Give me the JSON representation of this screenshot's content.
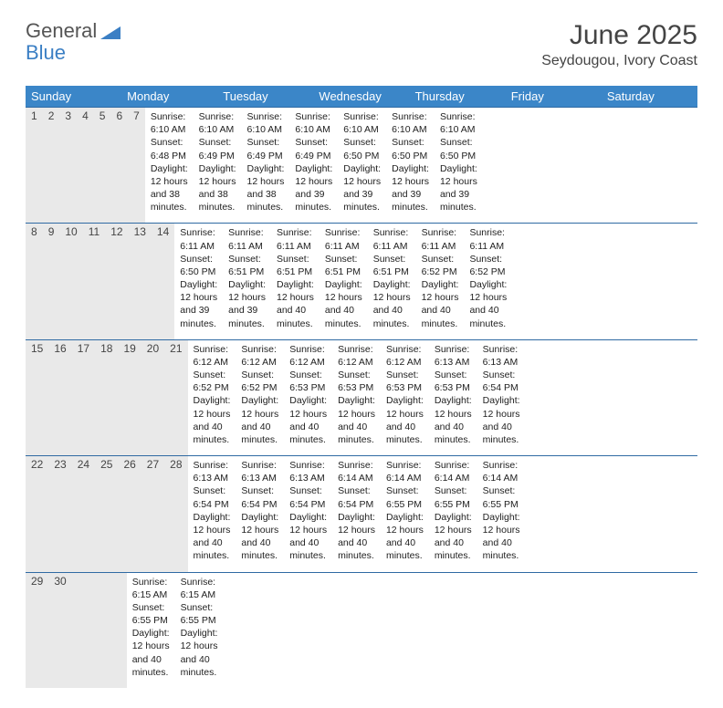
{
  "logo": {
    "line1": "General",
    "line2": "Blue"
  },
  "title": {
    "month": "June 2025",
    "location": "Seydougou, Ivory Coast"
  },
  "colors": {
    "header_bg": "#3b86c8",
    "header_text": "#ffffff",
    "daynum_bg": "#e9e9e9",
    "week_border": "#2f6aa3",
    "logo_gray": "#555555",
    "logo_blue": "#3b7fc4",
    "text": "#222222"
  },
  "day_headers": [
    "Sunday",
    "Monday",
    "Tuesday",
    "Wednesday",
    "Thursday",
    "Friday",
    "Saturday"
  ],
  "weeks": [
    {
      "nums": [
        "1",
        "2",
        "3",
        "4",
        "5",
        "6",
        "7"
      ],
      "cells": [
        {
          "sunrise": "Sunrise: 6:10 AM",
          "sunset": "Sunset: 6:48 PM",
          "day1": "Daylight: 12 hours",
          "day2": "and 38 minutes."
        },
        {
          "sunrise": "Sunrise: 6:10 AM",
          "sunset": "Sunset: 6:49 PM",
          "day1": "Daylight: 12 hours",
          "day2": "and 38 minutes."
        },
        {
          "sunrise": "Sunrise: 6:10 AM",
          "sunset": "Sunset: 6:49 PM",
          "day1": "Daylight: 12 hours",
          "day2": "and 38 minutes."
        },
        {
          "sunrise": "Sunrise: 6:10 AM",
          "sunset": "Sunset: 6:49 PM",
          "day1": "Daylight: 12 hours",
          "day2": "and 39 minutes."
        },
        {
          "sunrise": "Sunrise: 6:10 AM",
          "sunset": "Sunset: 6:50 PM",
          "day1": "Daylight: 12 hours",
          "day2": "and 39 minutes."
        },
        {
          "sunrise": "Sunrise: 6:10 AM",
          "sunset": "Sunset: 6:50 PM",
          "day1": "Daylight: 12 hours",
          "day2": "and 39 minutes."
        },
        {
          "sunrise": "Sunrise: 6:10 AM",
          "sunset": "Sunset: 6:50 PM",
          "day1": "Daylight: 12 hours",
          "day2": "and 39 minutes."
        }
      ]
    },
    {
      "nums": [
        "8",
        "9",
        "10",
        "11",
        "12",
        "13",
        "14"
      ],
      "cells": [
        {
          "sunrise": "Sunrise: 6:11 AM",
          "sunset": "Sunset: 6:50 PM",
          "day1": "Daylight: 12 hours",
          "day2": "and 39 minutes."
        },
        {
          "sunrise": "Sunrise: 6:11 AM",
          "sunset": "Sunset: 6:51 PM",
          "day1": "Daylight: 12 hours",
          "day2": "and 39 minutes."
        },
        {
          "sunrise": "Sunrise: 6:11 AM",
          "sunset": "Sunset: 6:51 PM",
          "day1": "Daylight: 12 hours",
          "day2": "and 40 minutes."
        },
        {
          "sunrise": "Sunrise: 6:11 AM",
          "sunset": "Sunset: 6:51 PM",
          "day1": "Daylight: 12 hours",
          "day2": "and 40 minutes."
        },
        {
          "sunrise": "Sunrise: 6:11 AM",
          "sunset": "Sunset: 6:51 PM",
          "day1": "Daylight: 12 hours",
          "day2": "and 40 minutes."
        },
        {
          "sunrise": "Sunrise: 6:11 AM",
          "sunset": "Sunset: 6:52 PM",
          "day1": "Daylight: 12 hours",
          "day2": "and 40 minutes."
        },
        {
          "sunrise": "Sunrise: 6:11 AM",
          "sunset": "Sunset: 6:52 PM",
          "day1": "Daylight: 12 hours",
          "day2": "and 40 minutes."
        }
      ]
    },
    {
      "nums": [
        "15",
        "16",
        "17",
        "18",
        "19",
        "20",
        "21"
      ],
      "cells": [
        {
          "sunrise": "Sunrise: 6:12 AM",
          "sunset": "Sunset: 6:52 PM",
          "day1": "Daylight: 12 hours",
          "day2": "and 40 minutes."
        },
        {
          "sunrise": "Sunrise: 6:12 AM",
          "sunset": "Sunset: 6:52 PM",
          "day1": "Daylight: 12 hours",
          "day2": "and 40 minutes."
        },
        {
          "sunrise": "Sunrise: 6:12 AM",
          "sunset": "Sunset: 6:53 PM",
          "day1": "Daylight: 12 hours",
          "day2": "and 40 minutes."
        },
        {
          "sunrise": "Sunrise: 6:12 AM",
          "sunset": "Sunset: 6:53 PM",
          "day1": "Daylight: 12 hours",
          "day2": "and 40 minutes."
        },
        {
          "sunrise": "Sunrise: 6:12 AM",
          "sunset": "Sunset: 6:53 PM",
          "day1": "Daylight: 12 hours",
          "day2": "and 40 minutes."
        },
        {
          "sunrise": "Sunrise: 6:13 AM",
          "sunset": "Sunset: 6:53 PM",
          "day1": "Daylight: 12 hours",
          "day2": "and 40 minutes."
        },
        {
          "sunrise": "Sunrise: 6:13 AM",
          "sunset": "Sunset: 6:54 PM",
          "day1": "Daylight: 12 hours",
          "day2": "and 40 minutes."
        }
      ]
    },
    {
      "nums": [
        "22",
        "23",
        "24",
        "25",
        "26",
        "27",
        "28"
      ],
      "cells": [
        {
          "sunrise": "Sunrise: 6:13 AM",
          "sunset": "Sunset: 6:54 PM",
          "day1": "Daylight: 12 hours",
          "day2": "and 40 minutes."
        },
        {
          "sunrise": "Sunrise: 6:13 AM",
          "sunset": "Sunset: 6:54 PM",
          "day1": "Daylight: 12 hours",
          "day2": "and 40 minutes."
        },
        {
          "sunrise": "Sunrise: 6:13 AM",
          "sunset": "Sunset: 6:54 PM",
          "day1": "Daylight: 12 hours",
          "day2": "and 40 minutes."
        },
        {
          "sunrise": "Sunrise: 6:14 AM",
          "sunset": "Sunset: 6:54 PM",
          "day1": "Daylight: 12 hours",
          "day2": "and 40 minutes."
        },
        {
          "sunrise": "Sunrise: 6:14 AM",
          "sunset": "Sunset: 6:55 PM",
          "day1": "Daylight: 12 hours",
          "day2": "and 40 minutes."
        },
        {
          "sunrise": "Sunrise: 6:14 AM",
          "sunset": "Sunset: 6:55 PM",
          "day1": "Daylight: 12 hours",
          "day2": "and 40 minutes."
        },
        {
          "sunrise": "Sunrise: 6:14 AM",
          "sunset": "Sunset: 6:55 PM",
          "day1": "Daylight: 12 hours",
          "day2": "and 40 minutes."
        }
      ]
    },
    {
      "nums": [
        "29",
        "30",
        "",
        "",
        "",
        "",
        ""
      ],
      "cells": [
        {
          "sunrise": "Sunrise: 6:15 AM",
          "sunset": "Sunset: 6:55 PM",
          "day1": "Daylight: 12 hours",
          "day2": "and 40 minutes."
        },
        {
          "sunrise": "Sunrise: 6:15 AM",
          "sunset": "Sunset: 6:55 PM",
          "day1": "Daylight: 12 hours",
          "day2": "and 40 minutes."
        },
        null,
        null,
        null,
        null,
        null
      ]
    }
  ]
}
